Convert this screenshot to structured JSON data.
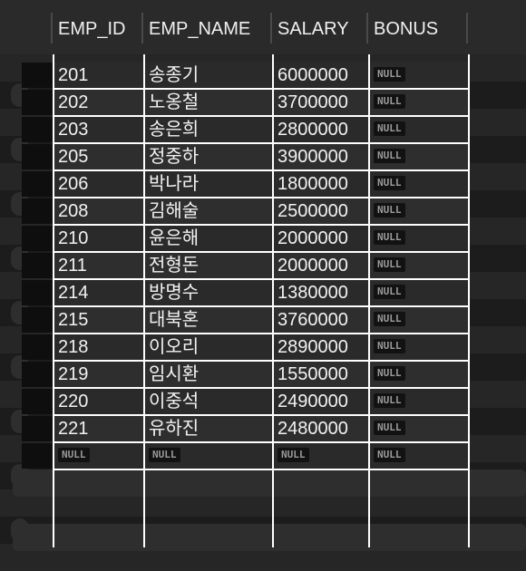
{
  "columns": [
    "EMP_ID",
    "EMP_NAME",
    "SALARY",
    "BONUS"
  ],
  "null_label": "NULL",
  "rows": [
    {
      "id": "201",
      "name": "송종기",
      "salary": "6000000",
      "bonus": "NULL"
    },
    {
      "id": "202",
      "name": "노옹철",
      "salary": "3700000",
      "bonus": "NULL"
    },
    {
      "id": "203",
      "name": "송은희",
      "salary": "2800000",
      "bonus": "NULL"
    },
    {
      "id": "205",
      "name": "정중하",
      "salary": "3900000",
      "bonus": "NULL"
    },
    {
      "id": "206",
      "name": "박나라",
      "salary": "1800000",
      "bonus": "NULL"
    },
    {
      "id": "208",
      "name": "김해술",
      "salary": "2500000",
      "bonus": "NULL"
    },
    {
      "id": "210",
      "name": "윤은해",
      "salary": "2000000",
      "bonus": "NULL"
    },
    {
      "id": "211",
      "name": "전형돈",
      "salary": "2000000",
      "bonus": "NULL"
    },
    {
      "id": "214",
      "name": "방명수",
      "salary": "1380000",
      "bonus": "NULL"
    },
    {
      "id": "215",
      "name": "대북혼",
      "salary": "3760000",
      "bonus": "NULL"
    },
    {
      "id": "218",
      "name": "이오리",
      "salary": "2890000",
      "bonus": "NULL"
    },
    {
      "id": "219",
      "name": "임시환",
      "salary": "1550000",
      "bonus": "NULL"
    },
    {
      "id": "220",
      "name": "이중석",
      "salary": "2490000",
      "bonus": "NULL"
    },
    {
      "id": "221",
      "name": "유하진",
      "salary": "2480000",
      "bonus": "NULL"
    },
    {
      "id": "NULL",
      "name": "NULL",
      "salary": "NULL",
      "bonus": "NULL"
    }
  ]
}
